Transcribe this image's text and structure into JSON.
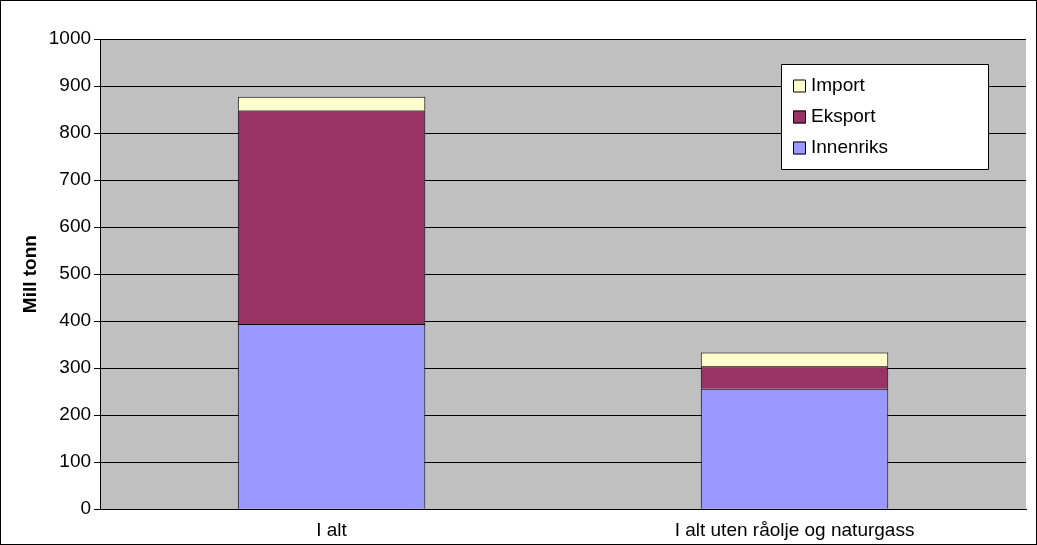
{
  "chart_data": {
    "type": "bar",
    "stacked": true,
    "ylabel": "Mill tonn",
    "categories": [
      "I alt",
      "I alt uten råolje og naturgass"
    ],
    "series": [
      {
        "name": "Innenriks",
        "color": "#9999ff",
        "values": [
          394,
          256
        ]
      },
      {
        "name": "Eksport",
        "color": "#993366",
        "values": [
          454,
          48
        ]
      },
      {
        "name": "Import",
        "color": "#ffffcc",
        "values": [
          29,
          29
        ]
      }
    ],
    "ylim": [
      0,
      1000
    ],
    "yticks": [
      0,
      100,
      200,
      300,
      400,
      500,
      600,
      700,
      800,
      900,
      1000
    ],
    "grid": "y",
    "legend": "top right"
  }
}
